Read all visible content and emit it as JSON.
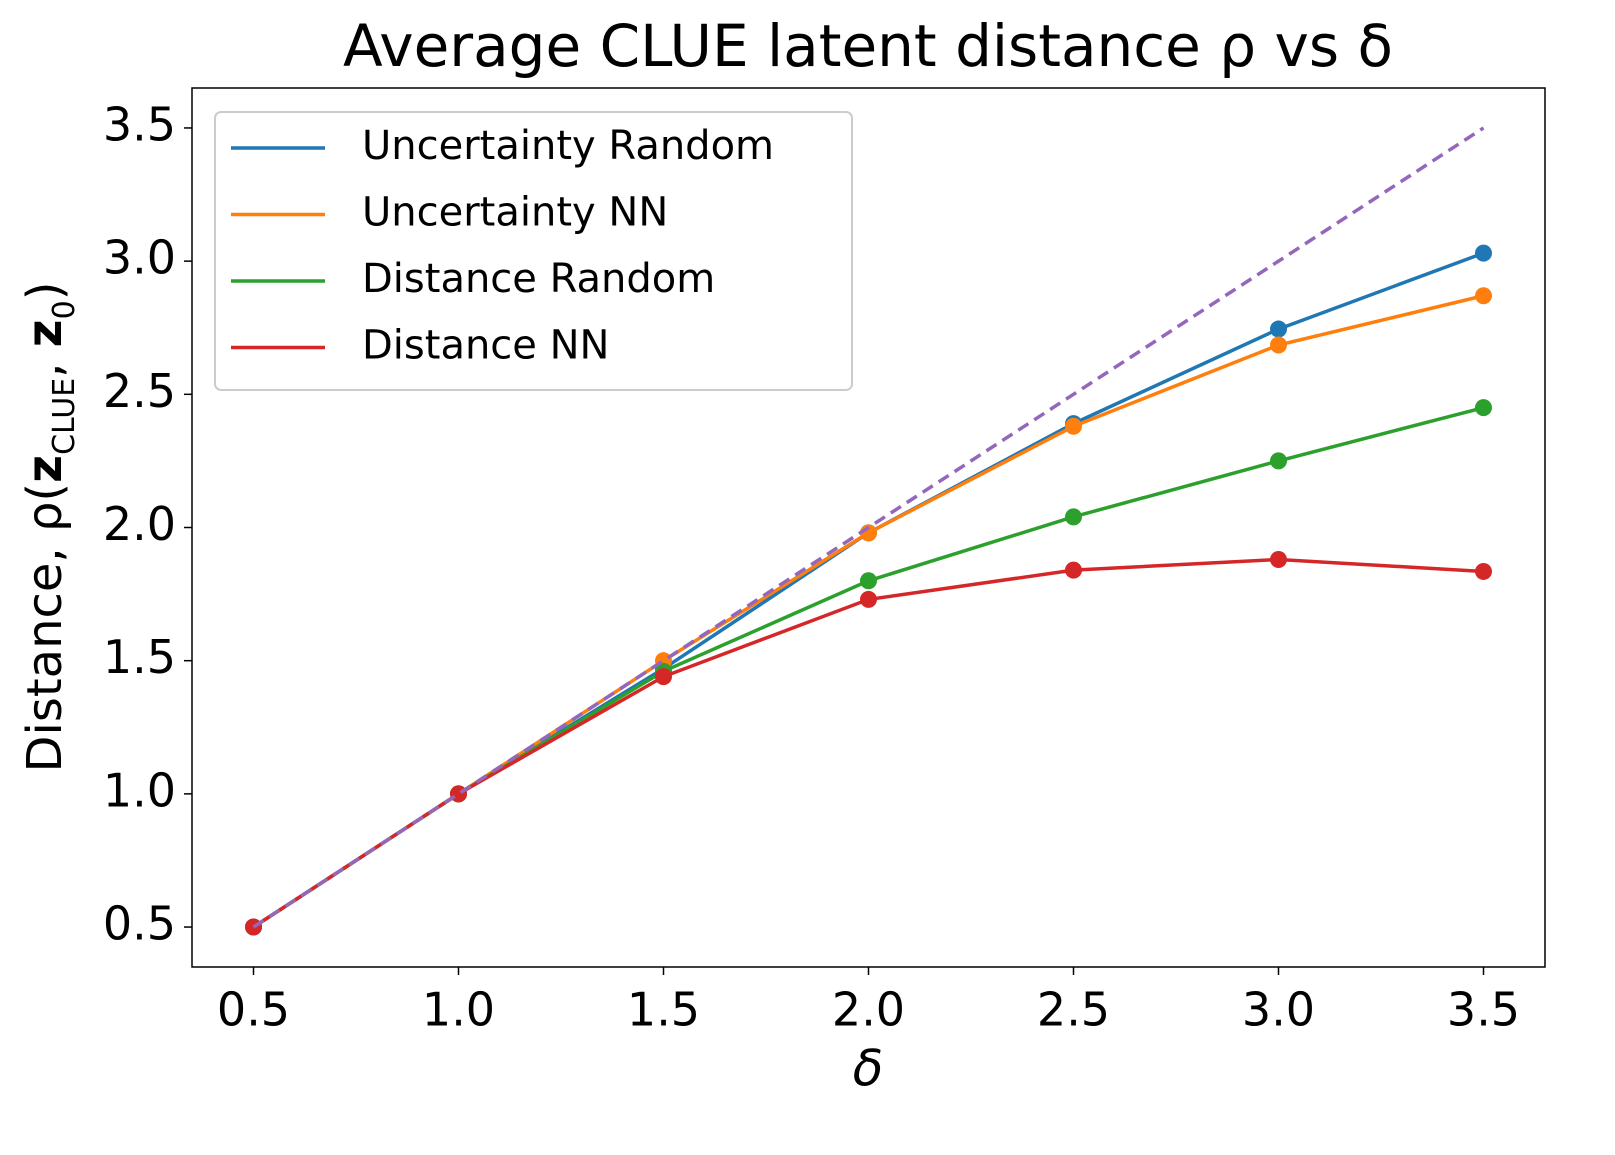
{
  "chart_data": {
    "type": "line",
    "title": "Average CLUE latent distance ρ vs δ",
    "xlabel": "δ",
    "ylabel": [
      "Distance, ρ(",
      "z",
      "CLUE",
      ", ",
      "z",
      "0",
      ")"
    ],
    "x": [
      0.5,
      1.0,
      1.5,
      2.0,
      2.5,
      3.0,
      3.5
    ],
    "series": [
      {
        "name": "Uncertainty Random",
        "color": "#1f77b4",
        "values": [
          0.5,
          1.0,
          1.47,
          1.98,
          2.39,
          2.745,
          3.03
        ]
      },
      {
        "name": "Uncertainty NN",
        "color": "#ff7f0e",
        "values": [
          0.5,
          1.0,
          1.5,
          1.98,
          2.38,
          2.685,
          2.87
        ]
      },
      {
        "name": "Distance Random",
        "color": "#2ca02c",
        "values": [
          0.5,
          1.0,
          1.46,
          1.8,
          2.04,
          2.25,
          2.45
        ]
      },
      {
        "name": "Distance NN",
        "color": "#d62728",
        "values": [
          0.5,
          1.0,
          1.44,
          1.73,
          1.84,
          1.88,
          1.835
        ]
      },
      {
        "color": "#9467bd",
        "dashed": true,
        "values": [
          0.5,
          1.0,
          1.5,
          2.0,
          2.5,
          3.0,
          3.5
        ]
      }
    ],
    "xlim": [
      0.35,
      3.65
    ],
    "ylim": [
      0.35,
      3.65
    ],
    "xticks": [
      0.5,
      {
        "value": 1.0,
        "label": "1.0"
      },
      1.5,
      {
        "value": 2.0,
        "label": "2.0"
      },
      2.5,
      {
        "value": 3.0,
        "label": "3.0"
      },
      3.5
    ],
    "yticks": [
      0.5,
      {
        "value": 1.0,
        "label": "1.0"
      },
      1.5,
      {
        "value": 2.0,
        "label": "2.0"
      },
      2.5,
      {
        "value": 3.0,
        "label": "3.0"
      },
      3.5
    ],
    "legend": "upper-left"
  }
}
